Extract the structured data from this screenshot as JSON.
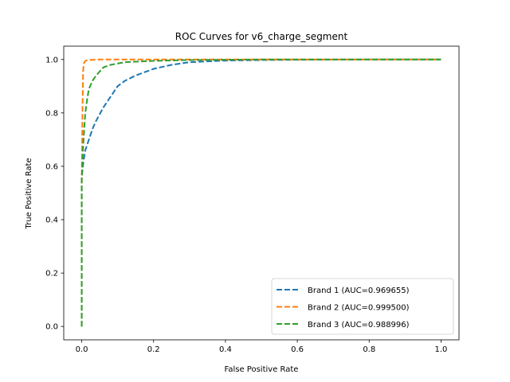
{
  "chart_data": {
    "type": "line",
    "title": "ROC Curves for v6_charge_segment",
    "xlabel": "False Positive Rate",
    "ylabel": "True Positive Rate",
    "xlim": [
      -0.05,
      1.05
    ],
    "ylim": [
      -0.05,
      1.05
    ],
    "xticks": [
      0.0,
      0.2,
      0.4,
      0.6,
      0.8,
      1.0
    ],
    "xtick_labels": [
      "0.0",
      "0.2",
      "0.4",
      "0.6",
      "0.8",
      "1.0"
    ],
    "yticks": [
      0.0,
      0.2,
      0.4,
      0.6,
      0.8,
      1.0
    ],
    "ytick_labels": [
      "0.0",
      "0.2",
      "0.4",
      "0.6",
      "0.8",
      "1.0"
    ],
    "grid": false,
    "legend_position": "lower-right",
    "line_style": "dashed",
    "series": [
      {
        "name": "Brand 1 (AUC=0.969655)",
        "color": "#1f77b4",
        "x": [
          0.0,
          0.0,
          0.005,
          0.01,
          0.02,
          0.03,
          0.04,
          0.06,
          0.08,
          0.1,
          0.12,
          0.15,
          0.2,
          0.25,
          0.3,
          0.4,
          0.5,
          0.6,
          0.8,
          1.0
        ],
        "y": [
          0.0,
          0.56,
          0.62,
          0.66,
          0.7,
          0.74,
          0.77,
          0.82,
          0.86,
          0.9,
          0.92,
          0.94,
          0.965,
          0.98,
          0.99,
          0.996,
          0.998,
          0.999,
          1.0,
          1.0
        ]
      },
      {
        "name": "Brand 2 (AUC=0.999500)",
        "color": "#ff7f0e",
        "x": [
          0.0,
          0.0,
          0.002,
          0.004,
          0.006,
          0.01,
          0.02,
          0.05,
          0.1,
          0.2,
          0.5,
          1.0
        ],
        "y": [
          0.0,
          0.52,
          0.8,
          0.96,
          0.985,
          0.995,
          0.998,
          1.0,
          1.0,
          1.0,
          1.0,
          1.0
        ]
      },
      {
        "name": "Brand 3 (AUC=0.988996)",
        "color": "#2ca02c",
        "x": [
          0.0,
          0.0,
          0.003,
          0.006,
          0.01,
          0.015,
          0.02,
          0.03,
          0.04,
          0.06,
          0.08,
          0.12,
          0.2,
          0.3,
          0.5,
          1.0
        ],
        "y": [
          0.0,
          0.55,
          0.65,
          0.72,
          0.8,
          0.85,
          0.89,
          0.92,
          0.94,
          0.97,
          0.98,
          0.99,
          0.995,
          0.998,
          1.0,
          1.0
        ]
      }
    ]
  }
}
